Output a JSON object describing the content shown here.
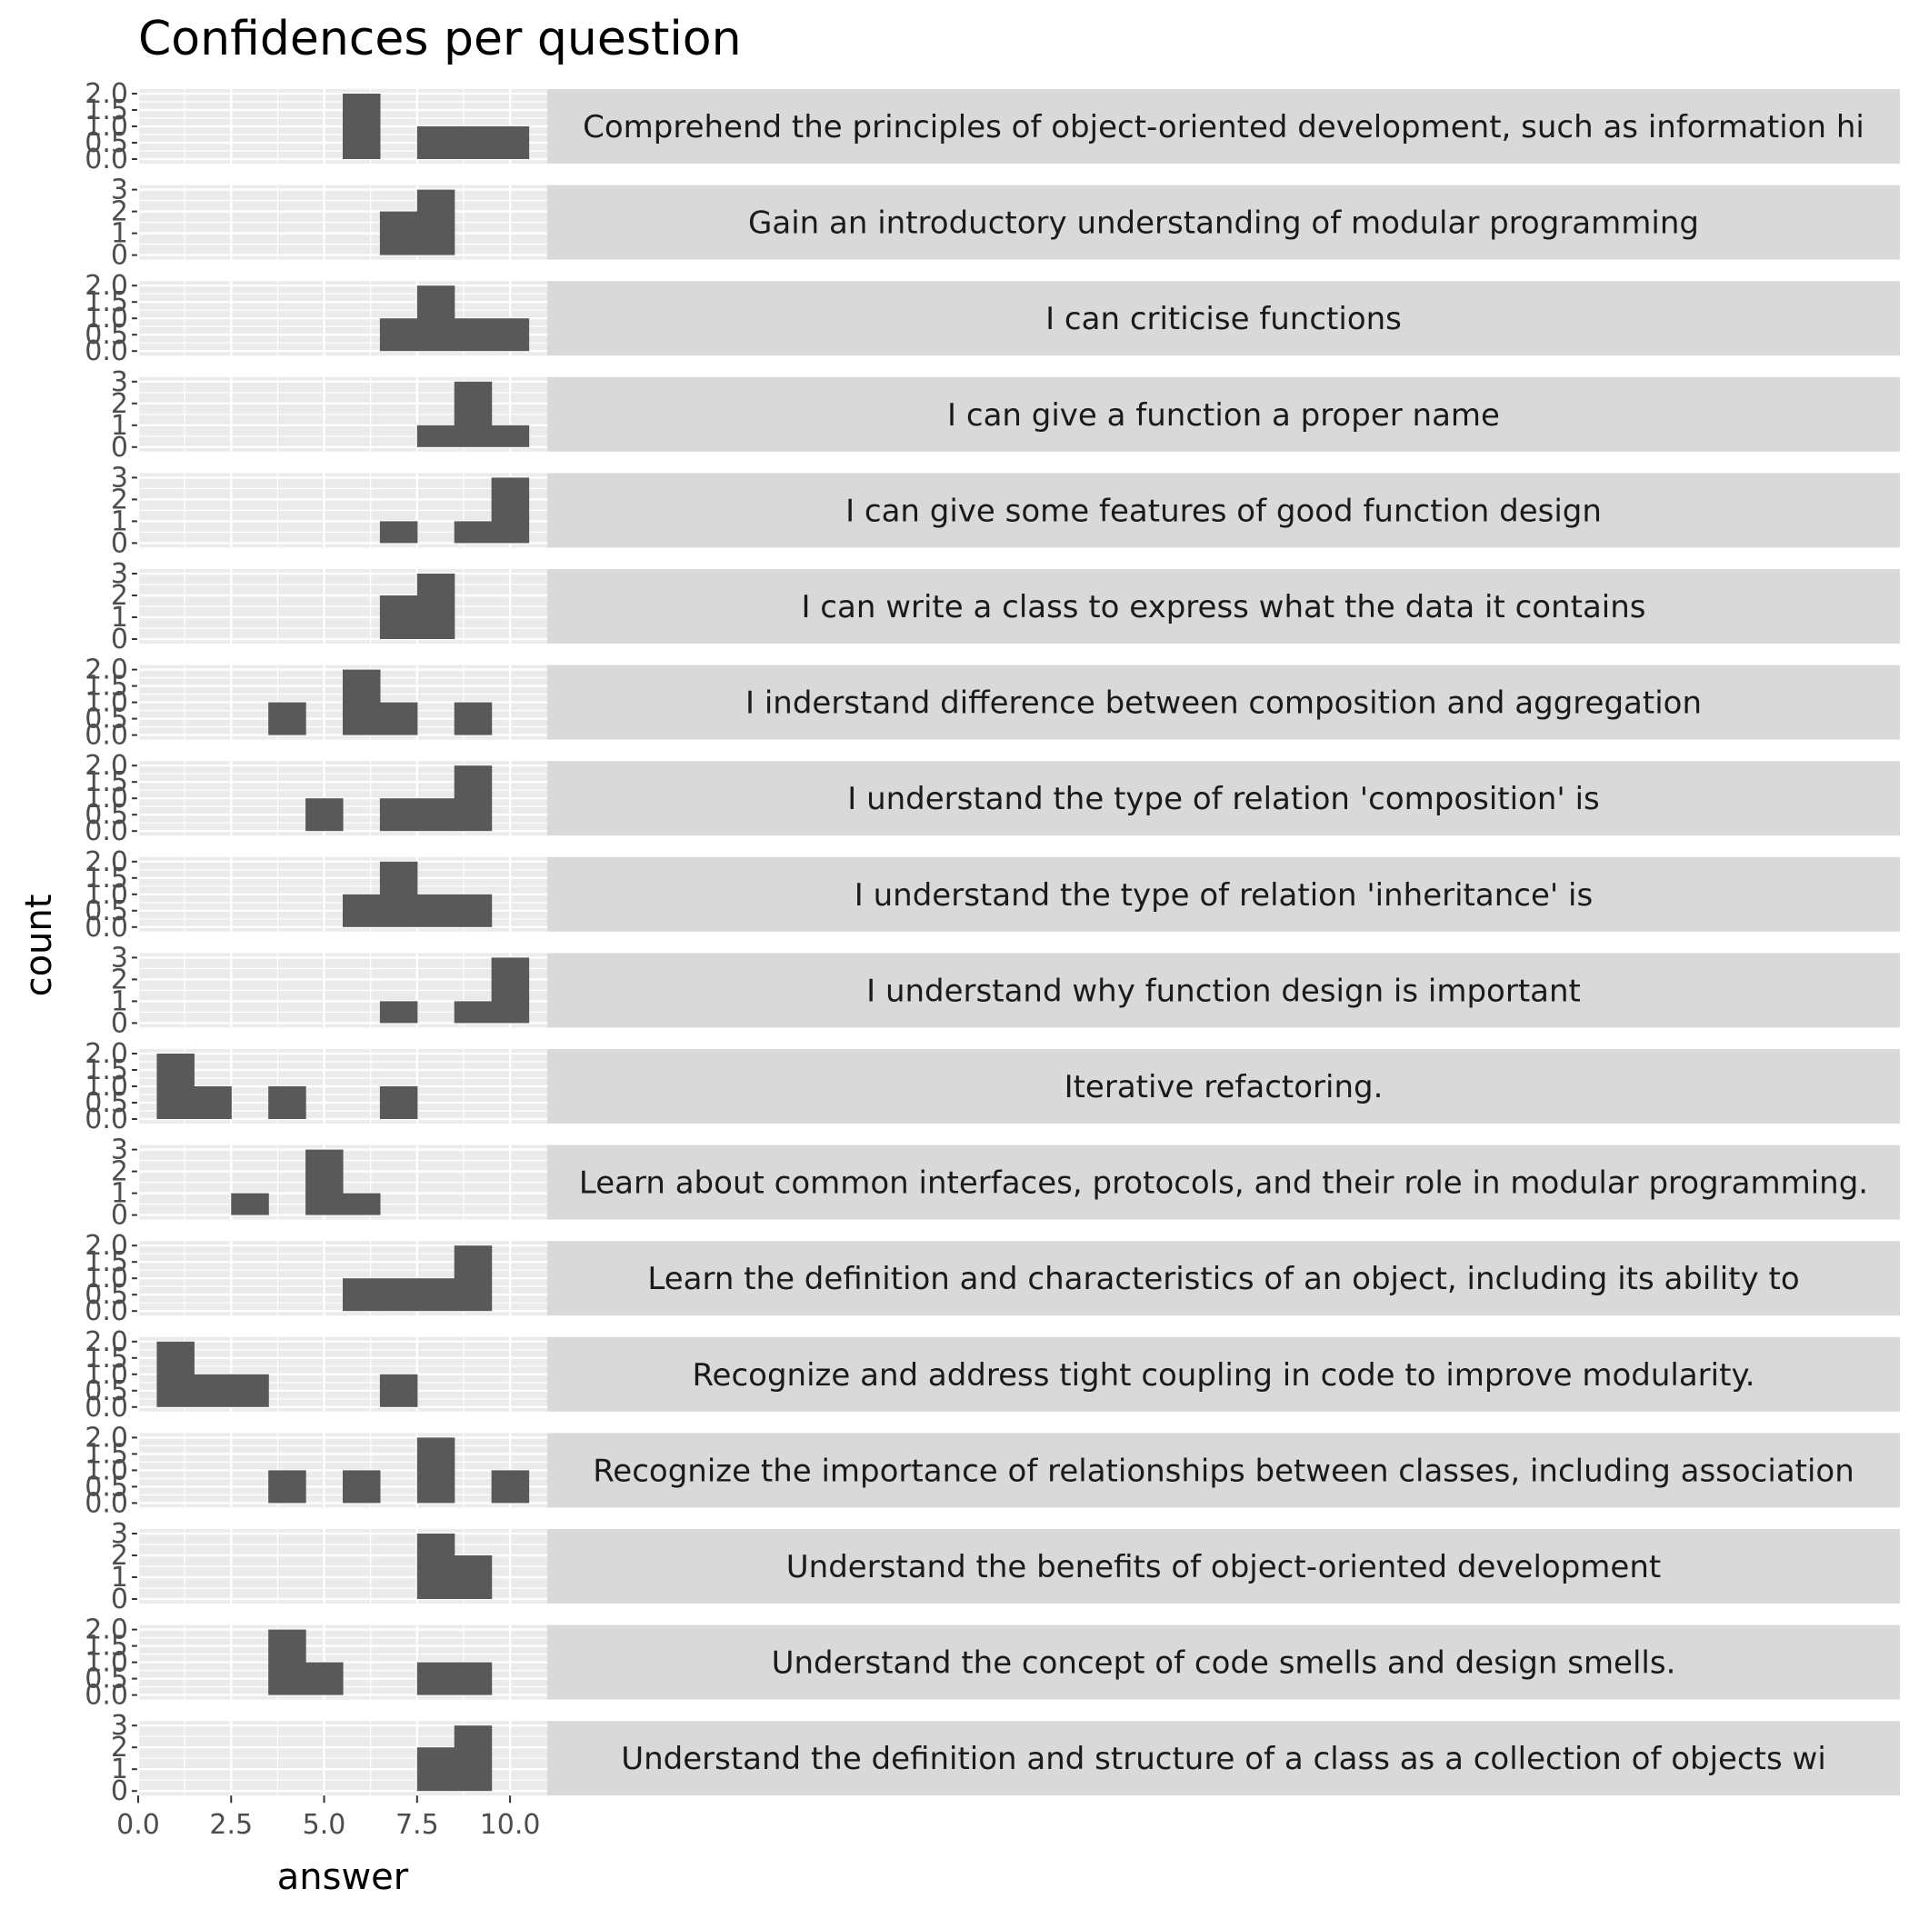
{
  "chart_data": {
    "type": "histogram-facets",
    "title": "Confidences per question",
    "xlabel": "answer",
    "ylabel": "count",
    "xlim": [
      0,
      11
    ],
    "x_ticks": [
      "0.0",
      "2.5",
      "5.0",
      "7.5",
      "10.0"
    ],
    "x_tick_values": [
      0,
      2.5,
      5,
      7.5,
      10
    ],
    "bin_width": 1,
    "grid": true,
    "facets": [
      {
        "label": "Comprehend the principles of object-oriented development, such as information hi",
        "y_ticks": [
          "0.0",
          "0.5",
          "1.0",
          "1.5",
          "2.0"
        ],
        "y_tick_values": [
          0,
          0.5,
          1,
          1.5,
          2
        ],
        "ymax": 2,
        "bins": [
          {
            "x": 6,
            "count": 2
          },
          {
            "x": 8,
            "count": 1
          },
          {
            "x": 9,
            "count": 1
          },
          {
            "x": 10,
            "count": 1
          }
        ]
      },
      {
        "label": "Gain an introductory understanding of modular programming",
        "y_ticks": [
          "0",
          "1",
          "2",
          "3"
        ],
        "y_tick_values": [
          0,
          1,
          2,
          3
        ],
        "ymax": 3,
        "bins": [
          {
            "x": 7,
            "count": 2
          },
          {
            "x": 8,
            "count": 3
          }
        ]
      },
      {
        "label": "I can criticise functions",
        "y_ticks": [
          "0.0",
          "0.5",
          "1.0",
          "1.5",
          "2.0"
        ],
        "y_tick_values": [
          0,
          0.5,
          1,
          1.5,
          2
        ],
        "ymax": 2,
        "bins": [
          {
            "x": 7,
            "count": 1
          },
          {
            "x": 8,
            "count": 2
          },
          {
            "x": 9,
            "count": 1
          },
          {
            "x": 10,
            "count": 1
          }
        ]
      },
      {
        "label": "I can give a function a proper name",
        "y_ticks": [
          "0",
          "1",
          "2",
          "3"
        ],
        "y_tick_values": [
          0,
          1,
          2,
          3
        ],
        "ymax": 3,
        "bins": [
          {
            "x": 8,
            "count": 1
          },
          {
            "x": 9,
            "count": 3
          },
          {
            "x": 10,
            "count": 1
          }
        ]
      },
      {
        "label": "I can give some features of good function design",
        "y_ticks": [
          "0",
          "1",
          "2",
          "3"
        ],
        "y_tick_values": [
          0,
          1,
          2,
          3
        ],
        "ymax": 3,
        "bins": [
          {
            "x": 7,
            "count": 1
          },
          {
            "x": 9,
            "count": 1
          },
          {
            "x": 10,
            "count": 3
          }
        ]
      },
      {
        "label": "I can write a class to express what the data it contains",
        "y_ticks": [
          "0",
          "1",
          "2",
          "3"
        ],
        "y_tick_values": [
          0,
          1,
          2,
          3
        ],
        "ymax": 3,
        "bins": [
          {
            "x": 7,
            "count": 2
          },
          {
            "x": 8,
            "count": 3
          }
        ]
      },
      {
        "label": "I inderstand difference between composition and aggregation",
        "y_ticks": [
          "0.0",
          "0.5",
          "1.0",
          "1.5",
          "2.0"
        ],
        "y_tick_values": [
          0,
          0.5,
          1,
          1.5,
          2
        ],
        "ymax": 2,
        "bins": [
          {
            "x": 4,
            "count": 1
          },
          {
            "x": 6,
            "count": 2
          },
          {
            "x": 7,
            "count": 1
          },
          {
            "x": 9,
            "count": 1
          }
        ]
      },
      {
        "label": "I understand the type of relation 'composition' is",
        "y_ticks": [
          "0.0",
          "0.5",
          "1.0",
          "1.5",
          "2.0"
        ],
        "y_tick_values": [
          0,
          0.5,
          1,
          1.5,
          2
        ],
        "ymax": 2,
        "bins": [
          {
            "x": 5,
            "count": 1
          },
          {
            "x": 7,
            "count": 1
          },
          {
            "x": 8,
            "count": 1
          },
          {
            "x": 9,
            "count": 2
          }
        ]
      },
      {
        "label": "I understand the type of relation 'inheritance' is",
        "y_ticks": [
          "0.0",
          "0.5",
          "1.0",
          "1.5",
          "2.0"
        ],
        "y_tick_values": [
          0,
          0.5,
          1,
          1.5,
          2
        ],
        "ymax": 2,
        "bins": [
          {
            "x": 6,
            "count": 1
          },
          {
            "x": 7,
            "count": 2
          },
          {
            "x": 8,
            "count": 1
          },
          {
            "x": 9,
            "count": 1
          }
        ]
      },
      {
        "label": "I understand why function design is important",
        "y_ticks": [
          "0",
          "1",
          "2",
          "3"
        ],
        "y_tick_values": [
          0,
          1,
          2,
          3
        ],
        "ymax": 3,
        "bins": [
          {
            "x": 7,
            "count": 1
          },
          {
            "x": 9,
            "count": 1
          },
          {
            "x": 10,
            "count": 3
          }
        ]
      },
      {
        "label": "Iterative refactoring.",
        "y_ticks": [
          "0.0",
          "0.5",
          "1.0",
          "1.5",
          "2.0"
        ],
        "y_tick_values": [
          0,
          0.5,
          1,
          1.5,
          2
        ],
        "ymax": 2,
        "bins": [
          {
            "x": 1,
            "count": 2
          },
          {
            "x": 2,
            "count": 1
          },
          {
            "x": 4,
            "count": 1
          },
          {
            "x": 7,
            "count": 1
          }
        ]
      },
      {
        "label": "Learn about common interfaces, protocols, and their role in modular programming.",
        "y_ticks": [
          "0",
          "1",
          "2",
          "3"
        ],
        "y_tick_values": [
          0,
          1,
          2,
          3
        ],
        "ymax": 3,
        "bins": [
          {
            "x": 3,
            "count": 1
          },
          {
            "x": 5,
            "count": 3
          },
          {
            "x": 6,
            "count": 1
          }
        ]
      },
      {
        "label": "Learn the definition and characteristics of an object, including its ability to",
        "y_ticks": [
          "0.0",
          "0.5",
          "1.0",
          "1.5",
          "2.0"
        ],
        "y_tick_values": [
          0,
          0.5,
          1,
          1.5,
          2
        ],
        "ymax": 2,
        "bins": [
          {
            "x": 6,
            "count": 1
          },
          {
            "x": 7,
            "count": 1
          },
          {
            "x": 8,
            "count": 1
          },
          {
            "x": 9,
            "count": 2
          }
        ]
      },
      {
        "label": "Recognize and address tight coupling in code to improve modularity.",
        "y_ticks": [
          "0.0",
          "0.5",
          "1.0",
          "1.5",
          "2.0"
        ],
        "y_tick_values": [
          0,
          0.5,
          1,
          1.5,
          2
        ],
        "ymax": 2,
        "bins": [
          {
            "x": 1,
            "count": 2
          },
          {
            "x": 2,
            "count": 1
          },
          {
            "x": 3,
            "count": 1
          },
          {
            "x": 7,
            "count": 1
          }
        ]
      },
      {
        "label": "Recognize the importance of relationships between classes, including association",
        "y_ticks": [
          "0.0",
          "0.5",
          "1.0",
          "1.5",
          "2.0"
        ],
        "y_tick_values": [
          0,
          0.5,
          1,
          1.5,
          2
        ],
        "ymax": 2,
        "bins": [
          {
            "x": 4,
            "count": 1
          },
          {
            "x": 6,
            "count": 1
          },
          {
            "x": 8,
            "count": 2
          },
          {
            "x": 10,
            "count": 1
          }
        ]
      },
      {
        "label": "Understand the benefits of object-oriented development",
        "y_ticks": [
          "0",
          "1",
          "2",
          "3"
        ],
        "y_tick_values": [
          0,
          1,
          2,
          3
        ],
        "ymax": 3,
        "bins": [
          {
            "x": 8,
            "count": 3
          },
          {
            "x": 9,
            "count": 2
          }
        ]
      },
      {
        "label": "Understand the concept of code smells and design smells.",
        "y_ticks": [
          "0.0",
          "0.5",
          "1.0",
          "1.5",
          "2.0"
        ],
        "y_tick_values": [
          0,
          0.5,
          1,
          1.5,
          2
        ],
        "ymax": 2,
        "bins": [
          {
            "x": 4,
            "count": 2
          },
          {
            "x": 5,
            "count": 1
          },
          {
            "x": 8,
            "count": 1
          },
          {
            "x": 9,
            "count": 1
          }
        ]
      },
      {
        "label": "Understand the definition and structure of a class as a collection of objects wi",
        "y_ticks": [
          "0",
          "1",
          "2",
          "3"
        ],
        "y_tick_values": [
          0,
          1,
          2,
          3
        ],
        "ymax": 3,
        "bins": [
          {
            "x": 8,
            "count": 2
          },
          {
            "x": 9,
            "count": 3
          }
        ]
      }
    ]
  },
  "colors": {
    "bar": "#595959",
    "panel_bg": "#ebebeb",
    "grid_major": "#ffffff",
    "strip_bg": "#d9d9d9",
    "tick_text": "#4d4d4d"
  }
}
